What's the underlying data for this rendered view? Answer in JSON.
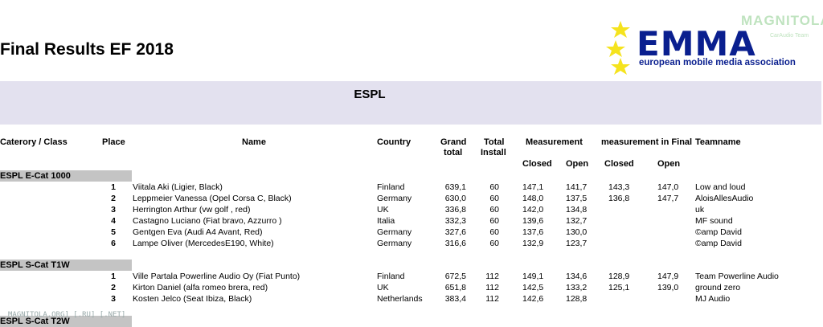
{
  "title": "Final Results EF 2018",
  "logo": {
    "word": "EMMA",
    "subtitle": "european mobile media association",
    "star_color": "#f5e31e",
    "text_color": "#0a1f8f"
  },
  "watermarks": {
    "top": "MAGNITOLA",
    "top_sub": "CarAudio Team",
    "bottom": "MAGNITOLA.ORG] [.RU] [.NET]"
  },
  "section_title": "ESPL",
  "headers": {
    "category": "Caterory / Class",
    "place": "Place",
    "name": "Name",
    "country": "Country",
    "grand_1": "Grand",
    "grand_2": "total",
    "install_1": "Total",
    "install_2": "Install",
    "measurement": "Measurement",
    "measurement_final": "measurement in Final",
    "teamname": "Teamname",
    "closed": "Closed",
    "open": "Open"
  },
  "groups": [
    {
      "label": "ESPL E-Cat 1000",
      "rows": [
        {
          "place": "1",
          "name": "Viitala Aki  (Ligier,  Black)",
          "country": "Finland",
          "grand": "639,1",
          "install": "60",
          "m_closed": "147,1",
          "m_open": "141,7",
          "f_closed": "143,3",
          "f_open": "147,0",
          "team": "Low and loud"
        },
        {
          "place": "2",
          "name": "Leppmeier Vanessa  (Opel Corsa C,  Black)",
          "country": "Germany",
          "grand": "630,0",
          "install": "60",
          "m_closed": "148,0",
          "m_open": "137,5",
          "f_closed": "136,8",
          "f_open": "147,7",
          "team": "AloisAllesAudio"
        },
        {
          "place": "3",
          "name": "Herrington Arthur   (vw golf ,  red)",
          "country": "UK",
          "grand": "336,8",
          "install": "60",
          "m_closed": "142,0",
          "m_open": "134,8",
          "f_closed": "",
          "f_open": "",
          "team": "uk"
        },
        {
          "place": "4",
          "name": "Castagno Luciano   (Fiat bravo,  Azzurro )",
          "country": "Italia",
          "grand": "332,3",
          "install": "60",
          "m_closed": "139,6",
          "m_open": "132,7",
          "f_closed": "",
          "f_open": "",
          "team": "MF sound"
        },
        {
          "place": "5",
          "name": "Gentgen Eva  (Audi A4 Avant,  Red)",
          "country": "Germany",
          "grand": "327,6",
          "install": "60",
          "m_closed": "137,6",
          "m_open": "130,0",
          "f_closed": "",
          "f_open": "",
          "team": "©amp David"
        },
        {
          "place": "6",
          "name": "Lampe Oliver  (MercedesE190,  White)",
          "country": "Germany",
          "grand": "316,6",
          "install": "60",
          "m_closed": "132,9",
          "m_open": "123,7",
          "f_closed": "",
          "f_open": "",
          "team": "©amp David"
        }
      ]
    },
    {
      "label": "ESPL S-Cat T1W",
      "rows": [
        {
          "place": "1",
          "name": "Ville Partala Powerline Audio Oy (Fiat Punto)",
          "country": "Finland",
          "grand": "672,5",
          "install": "112",
          "m_closed": "149,1",
          "m_open": "134,6",
          "f_closed": "128,9",
          "f_open": "147,9",
          "team": "Team Powerline Audio"
        },
        {
          "place": "2",
          "name": "Kirton Daniel  (alfa romeo brera,  red)",
          "country": "UK",
          "grand": "651,8",
          "install": "112",
          "m_closed": "142,5",
          "m_open": "133,2",
          "f_closed": "125,1",
          "f_open": "139,0",
          "team": "ground zero"
        },
        {
          "place": "3",
          "name": "Kosten Jelco  (Seat Ibiza,  Black)",
          "country": "Netherlands",
          "grand": "383,4",
          "install": "112",
          "m_closed": "142,6",
          "m_open": "128,8",
          "f_closed": "",
          "f_open": "",
          "team": "MJ Audio"
        }
      ]
    },
    {
      "label": "ESPL S-Cat T2W",
      "rows": []
    }
  ]
}
